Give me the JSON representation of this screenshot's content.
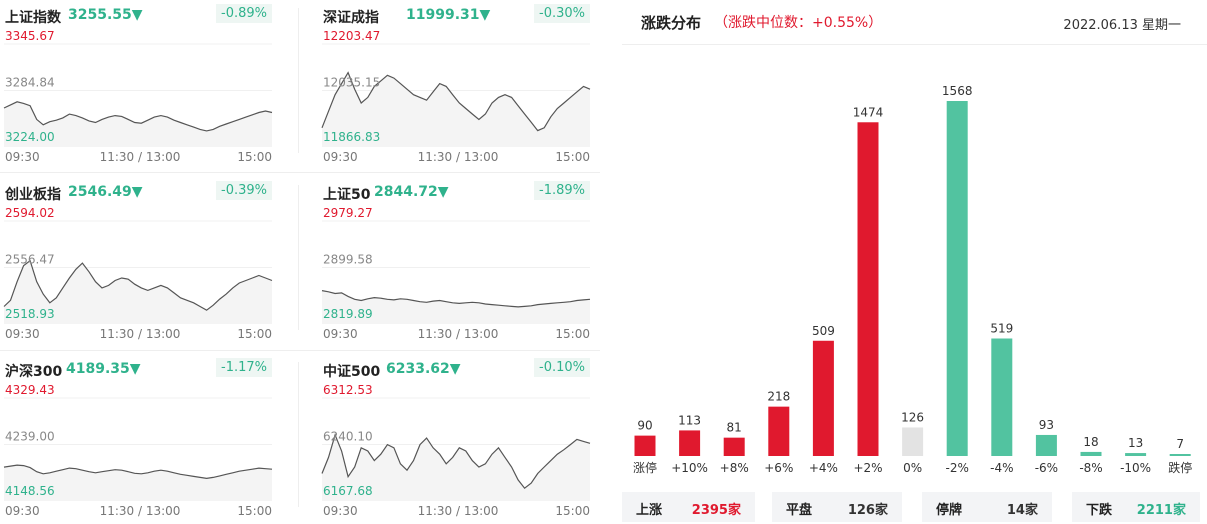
{
  "indices": [
    {
      "name": "上证指数",
      "price": "3255.55",
      "arrow": "▼",
      "change": "-0.89%",
      "y_top": "3345.67",
      "y_mid": "3284.84",
      "y_bot": "3224.00",
      "t_start": "09:30",
      "t_mid": "11:30 / 13:00",
      "t_end": "15:00",
      "series": [
        3262,
        3266,
        3270,
        3268,
        3265,
        3247,
        3240,
        3244,
        3246,
        3249,
        3254,
        3252,
        3249,
        3245,
        3243,
        3247,
        3250,
        3252,
        3251,
        3247,
        3243,
        3242,
        3246,
        3250,
        3252,
        3250,
        3246,
        3243,
        3240,
        3237,
        3234,
        3232,
        3234,
        3238,
        3241,
        3244,
        3247,
        3250,
        3253,
        3256,
        3258,
        3256
      ]
    },
    {
      "name": "深证成指",
      "price": "11999.31",
      "arrow": "▼",
      "change": "-0.30%",
      "y_top": "12203.47",
      "y_mid": "12035.15",
      "y_bot": "11866.83",
      "t_start": "09:30",
      "t_mid": "11:30 / 13:00",
      "t_end": "15:00",
      "series": [
        11900,
        11960,
        12020,
        12060,
        12100,
        12040,
        11990,
        12010,
        12050,
        12070,
        12090,
        12080,
        12060,
        12040,
        12020,
        12010,
        12000,
        12030,
        12060,
        12050,
        12020,
        11990,
        11970,
        11950,
        11930,
        11950,
        11990,
        12010,
        12020,
        12010,
        11980,
        11950,
        11920,
        11890,
        11900,
        11940,
        11970,
        11990,
        12010,
        12030,
        12050,
        12040
      ]
    },
    {
      "name": "创业板指",
      "price": "2546.49",
      "arrow": "▼",
      "change": "-0.39%",
      "y_top": "2594.02",
      "y_mid": "2556.47",
      "y_bot": "2518.93",
      "t_start": "09:30",
      "t_mid": "11:30 / 13:00",
      "t_end": "15:00",
      "series": [
        2525,
        2530,
        2545,
        2558,
        2562,
        2545,
        2535,
        2528,
        2532,
        2540,
        2548,
        2555,
        2560,
        2553,
        2545,
        2540,
        2542,
        2546,
        2548,
        2547,
        2543,
        2540,
        2538,
        2540,
        2542,
        2540,
        2536,
        2532,
        2530,
        2528,
        2525,
        2522,
        2526,
        2531,
        2535,
        2540,
        2544,
        2546,
        2548,
        2550,
        2548,
        2546
      ]
    },
    {
      "name": "上证50",
      "price": "2844.72",
      "arrow": "▼",
      "change": "-1.89%",
      "y_top": "2979.27",
      "y_mid": "2899.58",
      "y_bot": "2819.89",
      "t_start": "09:30",
      "t_mid": "11:30 / 13:00",
      "t_end": "15:00",
      "series": [
        2860,
        2858,
        2855,
        2856,
        2850,
        2845,
        2843,
        2846,
        2848,
        2847,
        2845,
        2844,
        2846,
        2845,
        2843,
        2841,
        2840,
        2842,
        2843,
        2841,
        2839,
        2838,
        2839,
        2840,
        2839,
        2837,
        2836,
        2835,
        2834,
        2833,
        2832,
        2833,
        2834,
        2836,
        2837,
        2838,
        2839,
        2840,
        2841,
        2843,
        2844,
        2845
      ]
    },
    {
      "name": "沪深300",
      "price": "4189.35",
      "arrow": "▼",
      "change": "-1.17%",
      "y_top": "4329.43",
      "y_mid": "4239.00",
      "y_bot": "4148.56",
      "t_start": "09:30",
      "t_mid": "11:30 / 13:00",
      "t_end": "15:00",
      "series": [
        4195,
        4197,
        4199,
        4198,
        4194,
        4186,
        4182,
        4184,
        4187,
        4190,
        4193,
        4192,
        4189,
        4186,
        4184,
        4186,
        4188,
        4190,
        4189,
        4186,
        4183,
        4182,
        4184,
        4187,
        4189,
        4187,
        4184,
        4181,
        4179,
        4177,
        4175,
        4173,
        4175,
        4178,
        4181,
        4184,
        4187,
        4189,
        4191,
        4193,
        4192,
        4191
      ]
    },
    {
      "name": "中证500",
      "price": "6233.62",
      "arrow": "▼",
      "change": "-0.10%",
      "y_top": "6312.53",
      "y_mid": "6240.10",
      "y_bot": "6167.68",
      "t_start": "09:30",
      "t_mid": "11:30 / 13:00",
      "t_end": "15:00",
      "series": [
        6195,
        6220,
        6255,
        6230,
        6190,
        6205,
        6235,
        6230,
        6215,
        6225,
        6240,
        6235,
        6210,
        6200,
        6215,
        6240,
        6250,
        6235,
        6225,
        6210,
        6220,
        6235,
        6230,
        6215,
        6205,
        6210,
        6225,
        6235,
        6220,
        6205,
        6185,
        6172,
        6180,
        6195,
        6205,
        6215,
        6225,
        6232,
        6240,
        6248,
        6245,
        6242
      ]
    }
  ],
  "distribution": {
    "title": "涨跌分布",
    "subtitle": "（涨跌中位数：+0.55%）",
    "date": "2022.06.13  星期一",
    "summary": [
      {
        "label": "上涨",
        "value": "2395",
        "unit": "家",
        "color": "#e0192e"
      },
      {
        "label": "平盘",
        "value": "126",
        "unit": "家",
        "color": "#333333"
      },
      {
        "label": "停牌",
        "value": "14",
        "unit": "家",
        "color": "#333333"
      },
      {
        "label": "下跌",
        "value": "2211",
        "unit": "家",
        "color": "#2fb28c"
      }
    ]
  },
  "chart_data": {
    "type": "bar",
    "categories": [
      "涨停",
      "+10%",
      "+8%",
      "+6%",
      "+4%",
      "+2%",
      "0%",
      "-2%",
      "-4%",
      "-6%",
      "-8%",
      "-10%",
      "跌停"
    ],
    "values": [
      90,
      113,
      81,
      218,
      509,
      1474,
      126,
      1568,
      519,
      93,
      18,
      13,
      7
    ],
    "colors": [
      "#e0192e",
      "#e0192e",
      "#e0192e",
      "#e0192e",
      "#e0192e",
      "#e0192e",
      "#e3e3e3",
      "#52c3a0",
      "#52c3a0",
      "#52c3a0",
      "#52c3a0",
      "#52c3a0",
      "#52c3a0"
    ],
    "ylim": [
      0,
      1568
    ]
  },
  "colors": {
    "up": "#e0192e",
    "down": "#2fb28c",
    "neutral": "#e3e3e3"
  }
}
